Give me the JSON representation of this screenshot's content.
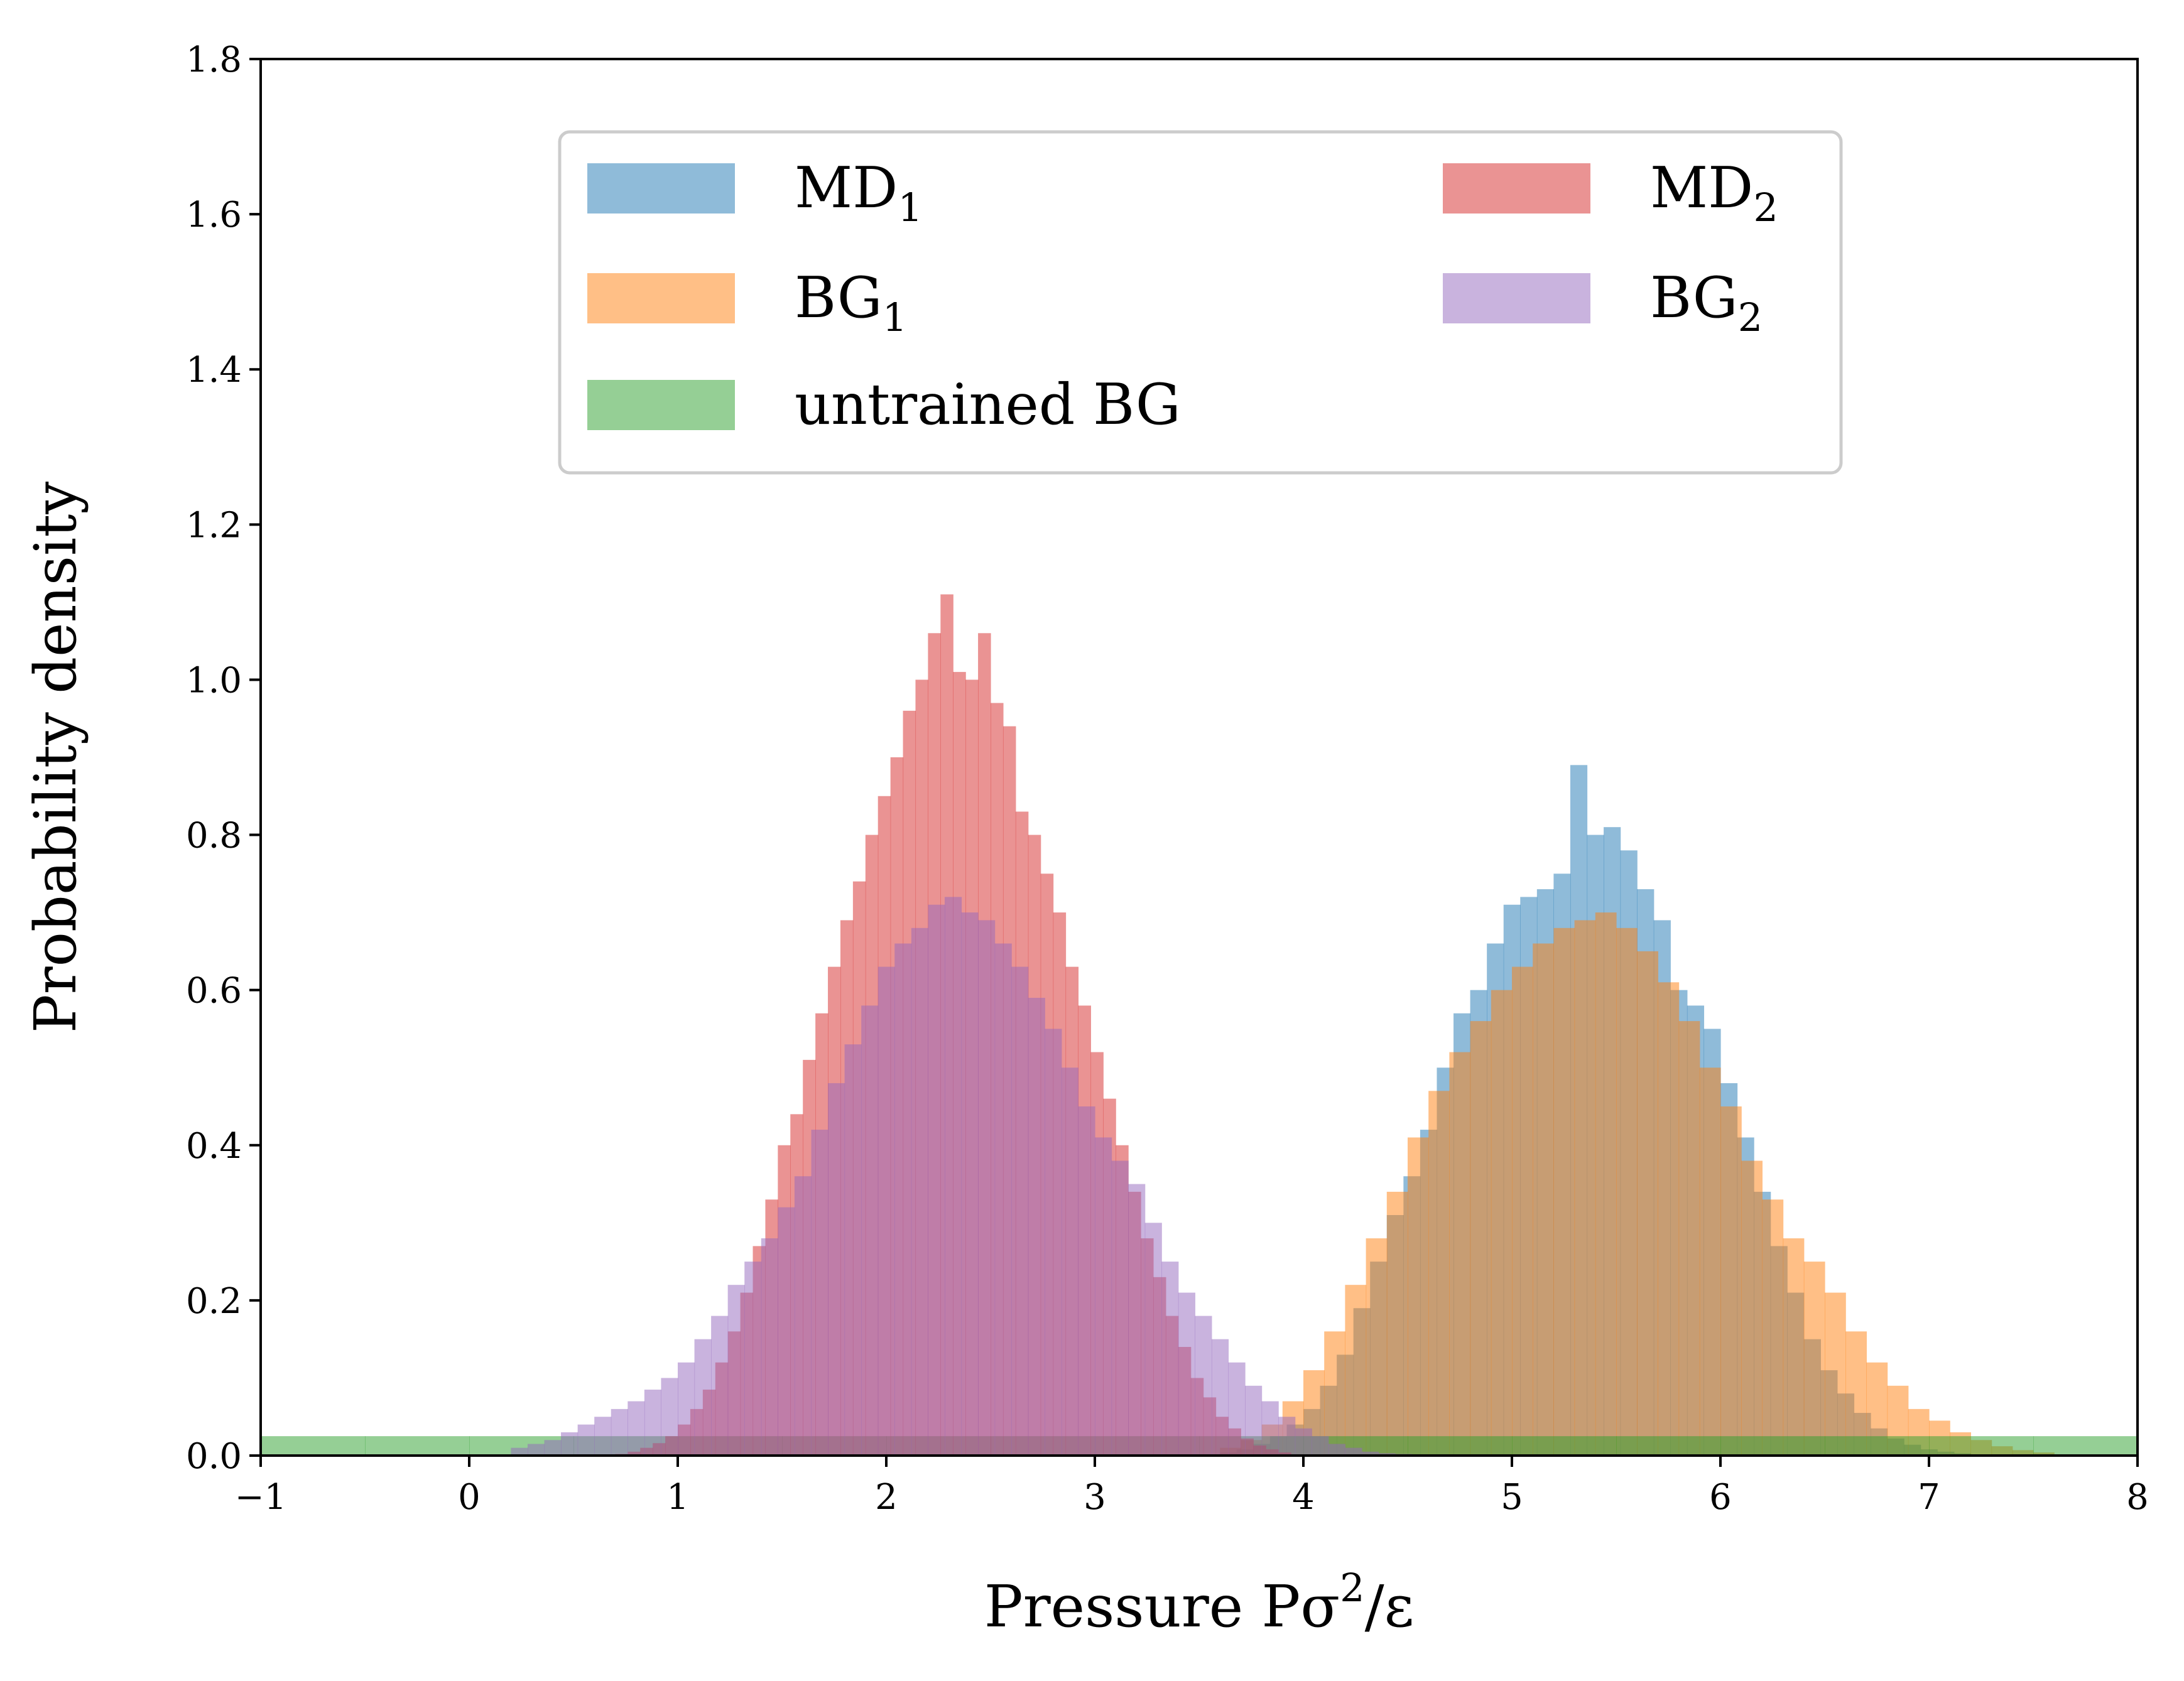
{
  "chart_data": {
    "type": "histogram",
    "title": "",
    "xlabel": "Pressure Pσ²/ε",
    "xlabel_parts": {
      "base": "Pressure Pσ",
      "sup": "2",
      "tail": "/ε"
    },
    "ylabel": "Probability density",
    "xlim": [
      -1,
      8
    ],
    "ylim": [
      0,
      1.8
    ],
    "xticks": [
      -1,
      0,
      1,
      2,
      3,
      4,
      5,
      6,
      7,
      8
    ],
    "xtick_labels": [
      "−1",
      "0",
      "1",
      "2",
      "3",
      "4",
      "5",
      "6",
      "7",
      "8"
    ],
    "yticks": [
      0.0,
      0.2,
      0.4,
      0.6,
      0.8,
      1.0,
      1.2,
      1.4,
      1.6,
      1.8
    ],
    "ytick_labels": [
      "0.0",
      "0.2",
      "0.4",
      "0.6",
      "0.8",
      "1.0",
      "1.2",
      "1.4",
      "1.6",
      "1.8"
    ],
    "opacity": 0.5,
    "legend_position": "upper-center",
    "series": [
      {
        "name": "MD₁",
        "label_base": "MD",
        "label_sub": "1",
        "color": "#1f77b4",
        "bin_start": 3.6,
        "bin_width": 0.08,
        "values": [
          0.004,
          0.008,
          0.015,
          0.025,
          0.04,
          0.06,
          0.09,
          0.13,
          0.19,
          0.25,
          0.31,
          0.36,
          0.42,
          0.5,
          0.57,
          0.6,
          0.66,
          0.71,
          0.72,
          0.73,
          0.75,
          0.89,
          0.8,
          0.81,
          0.78,
          0.73,
          0.69,
          0.6,
          0.58,
          0.55,
          0.48,
          0.41,
          0.34,
          0.27,
          0.21,
          0.15,
          0.11,
          0.08,
          0.055,
          0.035,
          0.022,
          0.014,
          0.008,
          0.005,
          0.003
        ]
      },
      {
        "name": "BG₁",
        "label_base": "BG",
        "label_sub": "1",
        "color": "#ff7f0e",
        "bin_start": 3.6,
        "bin_width": 0.1,
        "values": [
          0.01,
          0.02,
          0.04,
          0.07,
          0.11,
          0.16,
          0.22,
          0.28,
          0.34,
          0.41,
          0.47,
          0.52,
          0.56,
          0.6,
          0.63,
          0.66,
          0.68,
          0.69,
          0.7,
          0.68,
          0.65,
          0.61,
          0.56,
          0.5,
          0.45,
          0.38,
          0.33,
          0.28,
          0.25,
          0.21,
          0.16,
          0.12,
          0.09,
          0.06,
          0.045,
          0.03,
          0.02,
          0.012,
          0.007,
          0.004
        ]
      },
      {
        "name": "untrained BG",
        "label_base": "untrained BG",
        "label_sub": "",
        "color": "#2ca02c",
        "bin_start": -1.0,
        "bin_width": 0.5,
        "values": [
          0.025,
          0.025,
          0.025,
          0.025,
          0.025,
          0.025,
          0.025,
          0.025,
          0.025,
          0.025,
          0.025,
          0.025,
          0.025,
          0.025,
          0.025,
          0.025,
          0.025,
          0.025
        ]
      },
      {
        "name": "MD₂",
        "label_base": "MD",
        "label_sub": "2",
        "color": "#d62728",
        "bin_start": 0.7,
        "bin_width": 0.06,
        "values": [
          0.002,
          0.005,
          0.01,
          0.016,
          0.025,
          0.04,
          0.06,
          0.085,
          0.12,
          0.16,
          0.21,
          0.27,
          0.33,
          0.4,
          0.44,
          0.51,
          0.57,
          0.63,
          0.69,
          0.74,
          0.8,
          0.85,
          0.9,
          0.96,
          1.0,
          1.06,
          1.11,
          1.01,
          1.0,
          1.06,
          0.97,
          0.94,
          0.83,
          0.8,
          0.75,
          0.7,
          0.63,
          0.58,
          0.52,
          0.46,
          0.4,
          0.34,
          0.28,
          0.23,
          0.18,
          0.14,
          0.1,
          0.075,
          0.05,
          0.035,
          0.022,
          0.013,
          0.008,
          0.004
        ]
      },
      {
        "name": "BG₂",
        "label_base": "BG",
        "label_sub": "2",
        "color": "#9467bd",
        "bin_start": 0.2,
        "bin_width": 0.08,
        "values": [
          0.01,
          0.015,
          0.02,
          0.03,
          0.04,
          0.05,
          0.06,
          0.07,
          0.085,
          0.1,
          0.12,
          0.15,
          0.18,
          0.22,
          0.25,
          0.28,
          0.32,
          0.36,
          0.42,
          0.48,
          0.53,
          0.58,
          0.63,
          0.66,
          0.68,
          0.71,
          0.72,
          0.7,
          0.69,
          0.66,
          0.63,
          0.59,
          0.55,
          0.5,
          0.45,
          0.41,
          0.38,
          0.35,
          0.3,
          0.25,
          0.21,
          0.18,
          0.15,
          0.12,
          0.09,
          0.07,
          0.05,
          0.035,
          0.025,
          0.015,
          0.01,
          0.005,
          0.003,
          0.002
        ]
      }
    ],
    "legend_order": [
      0,
      1,
      2,
      3,
      4
    ]
  }
}
